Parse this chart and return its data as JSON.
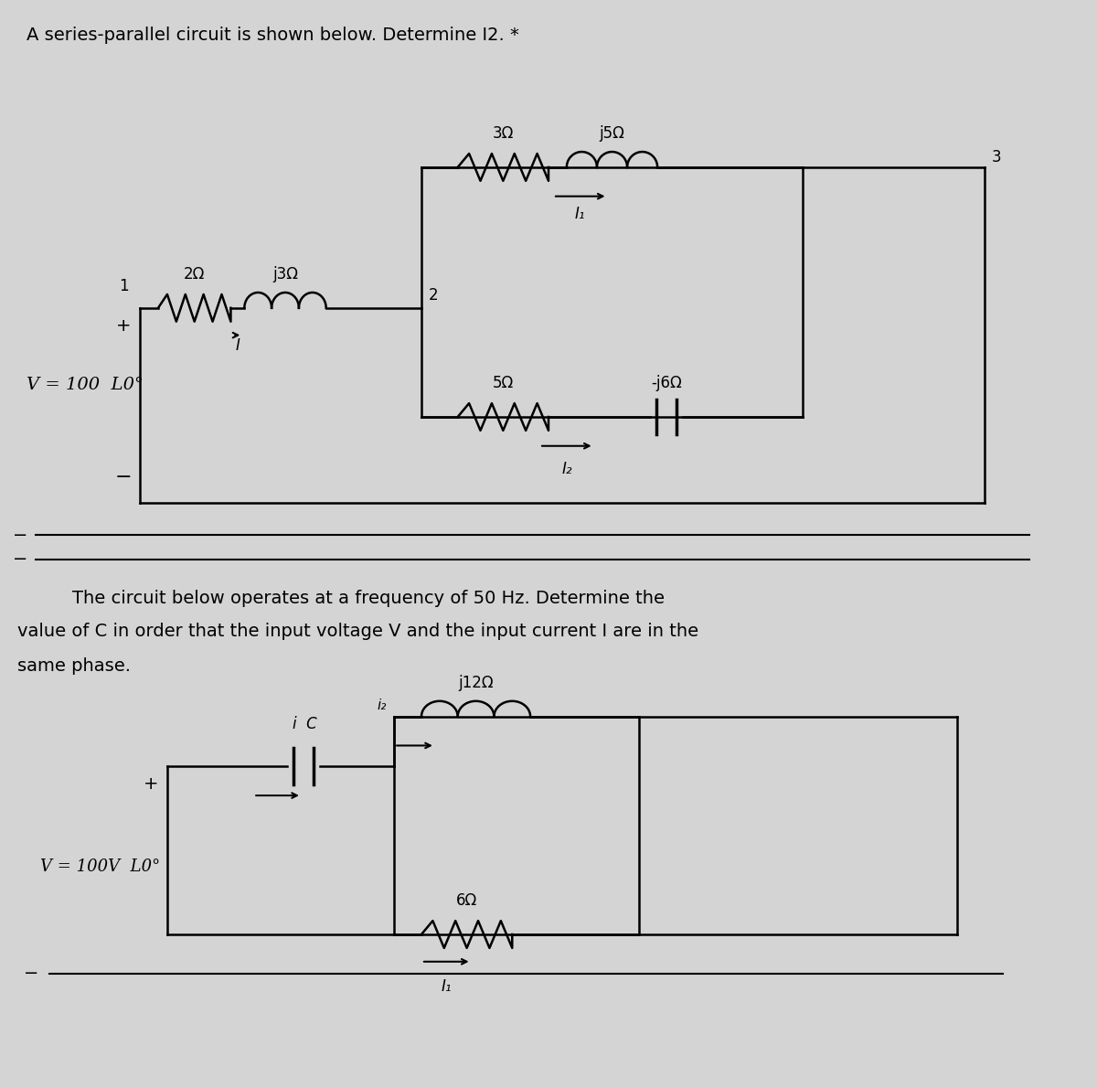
{
  "bg_color": "#d4d4d4",
  "title1": "A series-parallel circuit is shown below. Determine I2. *",
  "title1_fontsize": 14,
  "desc_text_line1": "    The circuit below operates at a frequency of 50 Hz. Determine the",
  "desc_text_line2": "value of C in order that the input voltage V and the input current I are in the",
  "desc_text_line3": "same phase.",
  "desc_fontsize": 14,
  "circuit1": {
    "voltage_label": "V = 100  L0°",
    "node1_label": "1",
    "node2_label": "2",
    "node3_label": "3",
    "R1_label": "2Ω",
    "jX1_label": "j3Ω",
    "I_label": "I",
    "R2_label": "3Ω",
    "jX2_label": "j5Ω",
    "R3_label": "5Ω",
    "jX3_label": "-j6Ω",
    "I1_label": "I₁",
    "I2_label": "I₂"
  },
  "circuit2": {
    "voltage_label": "V = 100V  L0°",
    "C_label": "i  C",
    "i_label": "i",
    "jL_label": "j12Ω",
    "i2_label": "i₂",
    "R_label": "6Ω",
    "I1_label": "I₁"
  }
}
